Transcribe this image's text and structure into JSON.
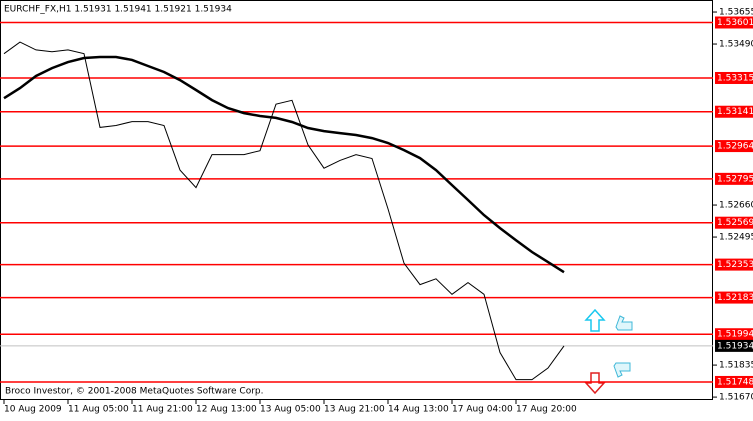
{
  "chart_data": {
    "type": "line",
    "title": "EURCHF_FX,H1  1.51931 1.51941 1.51921 1.51934",
    "footer": "Broco Investor, © 2001-2008 MetaQuotes Software Corp.",
    "x": [
      0,
      4,
      8,
      12,
      16,
      20,
      24,
      28,
      32,
      36,
      40,
      44,
      48,
      52,
      56,
      60,
      64,
      68,
      72,
      76,
      80,
      84,
      88,
      92,
      96,
      100,
      104,
      108,
      112,
      116,
      120,
      124,
      128,
      132,
      136,
      140
    ],
    "series": [
      {
        "color": "#000000",
        "line_width": 1,
        "values": [
          1.5344,
          1.535,
          1.5346,
          1.5345,
          1.5346,
          1.5344,
          1.5306,
          1.5307,
          1.5309,
          1.5309,
          1.5307,
          1.5284,
          1.5275,
          1.5292,
          1.5292,
          1.5292,
          1.5294,
          1.5318,
          1.532,
          1.5297,
          1.5285,
          1.5289,
          1.5292,
          1.529,
          1.5264,
          1.5236,
          1.5225,
          1.5228,
          1.522,
          1.5226,
          1.522,
          1.519,
          1.5176,
          1.5176,
          1.5182,
          1.51934
        ]
      },
      {
        "color": "#000000",
        "line_width": 2.5,
        "values": [
          1.53211,
          1.53263,
          1.53325,
          1.53366,
          1.53397,
          1.53418,
          1.53423,
          1.53423,
          1.53408,
          1.53377,
          1.53346,
          1.53304,
          1.53253,
          1.53201,
          1.5316,
          1.53134,
          1.53119,
          1.53109,
          1.53088,
          1.53057,
          1.53041,
          1.53031,
          1.53021,
          1.53005,
          1.5298,
          1.52943,
          1.52902,
          1.5284,
          1.52763,
          1.52686,
          1.52608,
          1.52541,
          1.52479,
          1.52418,
          1.52366,
          1.52314
        ]
      }
    ],
    "levels": {
      "color": "#ff0000",
      "values": [
        1.53601,
        1.53315,
        1.53141,
        1.52964,
        1.52795,
        1.52569,
        1.52353,
        1.52183,
        1.51994,
        1.51748
      ]
    },
    "current_price": 1.51934,
    "xlim": [
      -1,
      177.25
    ],
    "xticks": [
      {
        "value": 0,
        "label": "10 Aug 2009"
      },
      {
        "value": 16,
        "label": "11 Aug 05:00"
      },
      {
        "value": 32,
        "label": "11 Aug 21:00"
      },
      {
        "value": 48,
        "label": "12 Aug 13:00"
      },
      {
        "value": 64,
        "label": "13 Aug 05:00"
      },
      {
        "value": 80,
        "label": "13 Aug 21:00"
      },
      {
        "value": 96,
        "label": "14 Aug 13:00"
      },
      {
        "value": 112,
        "label": "17 Aug 04:00"
      },
      {
        "value": 128,
        "label": "17 Aug 20:00"
      }
    ],
    "ylim": [
      1.51655,
      1.53717
    ],
    "yticks": [
      1.53655,
      {
        "value": 1.5349,
        "label": "1.53490"
      },
      {
        "value": 1.5266,
        "label": "1.52660"
      },
      1.52495,
      1.51835,
      {
        "value": 1.5167,
        "label": "1.51670"
      }
    ]
  }
}
